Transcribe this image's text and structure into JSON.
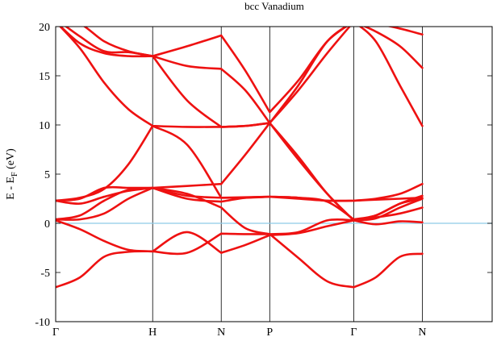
{
  "chart_data": {
    "type": "line",
    "title": "bcc Vanadium",
    "ylabel": {
      "main": "E - E",
      "sub": "F",
      "tail": " (eV)"
    },
    "xlabel": "",
    "ylim": [
      -10,
      20
    ],
    "yticks": [
      -10,
      -5,
      0,
      5,
      10,
      15,
      20
    ],
    "xlim": [
      0,
      4.5
    ],
    "kpoints": [
      {
        "label": "Γ",
        "x": 0
      },
      {
        "label": "H",
        "x": 1
      },
      {
        "label": "N",
        "x": 1.707
      },
      {
        "label": "P",
        "x": 2.207
      },
      {
        "label": "Γ",
        "x": 3.073
      },
      {
        "label": "N",
        "x": 3.78
      }
    ],
    "fermi_level": 0,
    "colors": {
      "bands": "#ee1111",
      "fermi": "#8ecbe8",
      "frame": "#000000"
    },
    "series": [
      {
        "points": [
          [
            0,
            -6.5
          ],
          [
            0.25,
            -5.5
          ],
          [
            0.5,
            -3.4
          ],
          [
            0.75,
            -2.9
          ],
          [
            1,
            -2.85
          ],
          [
            1.354,
            -3.0
          ],
          [
            1.707,
            -1.05
          ],
          [
            1.957,
            -1.1
          ],
          [
            2.207,
            -1.1
          ],
          [
            2.5,
            -3.5
          ],
          [
            2.8,
            -5.9
          ],
          [
            3.073,
            -6.5
          ],
          [
            3.3,
            -5.5
          ],
          [
            3.55,
            -3.4
          ],
          [
            3.78,
            -3.1
          ]
        ]
      },
      {
        "points": [
          [
            0,
            0.3
          ],
          [
            0.25,
            -0.6
          ],
          [
            0.5,
            -1.8
          ],
          [
            0.75,
            -2.7
          ],
          [
            1,
            -2.85
          ],
          [
            1.354,
            -0.9
          ],
          [
            1.707,
            -3.0
          ],
          [
            1.957,
            -2.2
          ],
          [
            2.207,
            -1.2
          ],
          [
            2.5,
            -1.0
          ],
          [
            2.8,
            -0.3
          ],
          [
            3.073,
            0.3
          ],
          [
            3.3,
            -0.1
          ],
          [
            3.55,
            0.2
          ],
          [
            3.78,
            0.1
          ]
        ]
      },
      {
        "points": [
          [
            0,
            0.4
          ],
          [
            0.25,
            0.4
          ],
          [
            0.5,
            1.0
          ],
          [
            0.75,
            2.5
          ],
          [
            1,
            3.6
          ],
          [
            1.354,
            3.0
          ],
          [
            1.707,
            1.6
          ],
          [
            1.957,
            -0.5
          ],
          [
            2.207,
            -1.1
          ],
          [
            2.5,
            -0.9
          ],
          [
            2.8,
            0.3
          ],
          [
            3.073,
            0.3
          ],
          [
            3.3,
            0.6
          ],
          [
            3.55,
            1.0
          ],
          [
            3.78,
            1.6
          ]
        ]
      },
      {
        "points": [
          [
            0,
            0.4
          ],
          [
            0.25,
            0.8
          ],
          [
            0.5,
            2.3
          ],
          [
            0.75,
            3.4
          ],
          [
            1,
            3.6
          ],
          [
            1.354,
            2.8
          ],
          [
            1.707,
            2.6
          ],
          [
            1.957,
            2.65
          ],
          [
            2.207,
            2.7
          ],
          [
            2.5,
            2.6
          ],
          [
            2.8,
            2.3
          ],
          [
            3.073,
            2.3
          ],
          [
            3.3,
            2.4
          ],
          [
            3.55,
            2.5
          ],
          [
            3.78,
            2.6
          ]
        ]
      },
      {
        "points": [
          [
            0,
            2.3
          ],
          [
            0.25,
            2.0
          ],
          [
            0.5,
            2.7
          ],
          [
            0.75,
            3.3
          ],
          [
            1,
            3.6
          ],
          [
            1.354,
            2.5
          ],
          [
            1.707,
            2.2
          ],
          [
            1.957,
            2.6
          ],
          [
            2.207,
            2.7
          ],
          [
            2.5,
            2.6
          ],
          [
            2.8,
            2.2
          ],
          [
            3.073,
            0.4
          ],
          [
            3.3,
            0.8
          ],
          [
            3.55,
            2.0
          ],
          [
            3.78,
            2.5
          ]
        ]
      },
      {
        "points": [
          [
            0,
            2.3
          ],
          [
            0.25,
            2.6
          ],
          [
            0.5,
            3.5
          ],
          [
            0.75,
            6.0
          ],
          [
            1,
            9.9
          ],
          [
            1.354,
            8.0
          ],
          [
            1.707,
            2.6
          ],
          [
            1.957,
            2.6
          ],
          [
            2.207,
            2.7
          ],
          [
            2.5,
            2.5
          ],
          [
            2.8,
            2.3
          ],
          [
            3.073,
            2.3
          ],
          [
            3.3,
            2.5
          ],
          [
            3.55,
            3.0
          ],
          [
            3.78,
            4.0
          ]
        ]
      },
      {
        "points": [
          [
            0,
            2.3
          ],
          [
            0.25,
            2.5
          ],
          [
            0.5,
            3.6
          ],
          [
            0.75,
            3.6
          ],
          [
            1,
            3.6
          ],
          [
            1.354,
            3.8
          ],
          [
            1.707,
            4.0
          ],
          [
            1.957,
            7.0
          ],
          [
            2.207,
            10.2
          ],
          [
            2.5,
            6.8
          ],
          [
            2.8,
            3.0
          ],
          [
            3.073,
            0.3
          ],
          [
            3.3,
            0.5
          ],
          [
            3.55,
            1.6
          ],
          [
            3.78,
            2.5
          ]
        ]
      },
      {
        "points": [
          [
            0,
            20.5
          ],
          [
            0.25,
            17.8
          ],
          [
            0.5,
            14.3
          ],
          [
            0.75,
            11.6
          ],
          [
            1,
            9.9
          ],
          [
            1.354,
            9.8
          ],
          [
            1.707,
            9.8
          ],
          [
            1.957,
            9.9
          ],
          [
            2.207,
            10.2
          ],
          [
            2.5,
            6.5
          ],
          [
            2.8,
            3.0
          ],
          [
            3.073,
            0.3
          ],
          [
            3.3,
            0.8
          ],
          [
            3.55,
            2.0
          ],
          [
            3.78,
            2.8
          ]
        ]
      },
      {
        "points": [
          [
            0,
            20.5
          ],
          [
            0.25,
            18.3
          ],
          [
            0.5,
            17.3
          ],
          [
            0.75,
            17.0
          ],
          [
            1,
            17.0
          ],
          [
            1.354,
            16.0
          ],
          [
            1.707,
            15.7
          ],
          [
            1.957,
            13.5
          ],
          [
            2.207,
            10.2
          ],
          [
            2.5,
            13.5
          ],
          [
            2.8,
            17.3
          ],
          [
            3.073,
            20.5
          ],
          [
            3.3,
            18.5
          ],
          [
            3.55,
            14.0
          ],
          [
            3.78,
            9.9
          ]
        ]
      },
      {
        "points": [
          [
            0,
            20.8
          ],
          [
            0.25,
            19.0
          ],
          [
            0.5,
            17.5
          ],
          [
            0.75,
            17.4
          ],
          [
            1,
            17.0
          ],
          [
            1.354,
            12.5
          ],
          [
            1.707,
            9.8
          ],
          [
            1.957,
            9.9
          ],
          [
            2.207,
            10.2
          ],
          [
            2.5,
            14.0
          ],
          [
            2.8,
            18.5
          ],
          [
            3.073,
            20.5
          ],
          [
            3.3,
            19.5
          ],
          [
            3.55,
            18.0
          ],
          [
            3.78,
            15.8
          ]
        ]
      },
      {
        "points": [
          [
            0,
            20.8
          ],
          [
            0.25,
            20.3
          ],
          [
            0.5,
            18.5
          ],
          [
            0.75,
            17.5
          ],
          [
            1,
            17.0
          ],
          [
            1.354,
            18.0
          ],
          [
            1.707,
            19.1
          ],
          [
            1.957,
            15.5
          ],
          [
            2.207,
            11.3
          ],
          [
            2.5,
            14.5
          ],
          [
            2.8,
            18.5
          ],
          [
            3.073,
            20.5
          ],
          [
            3.3,
            20.3
          ],
          [
            3.55,
            19.8
          ],
          [
            3.78,
            19.2
          ]
        ]
      }
    ]
  }
}
